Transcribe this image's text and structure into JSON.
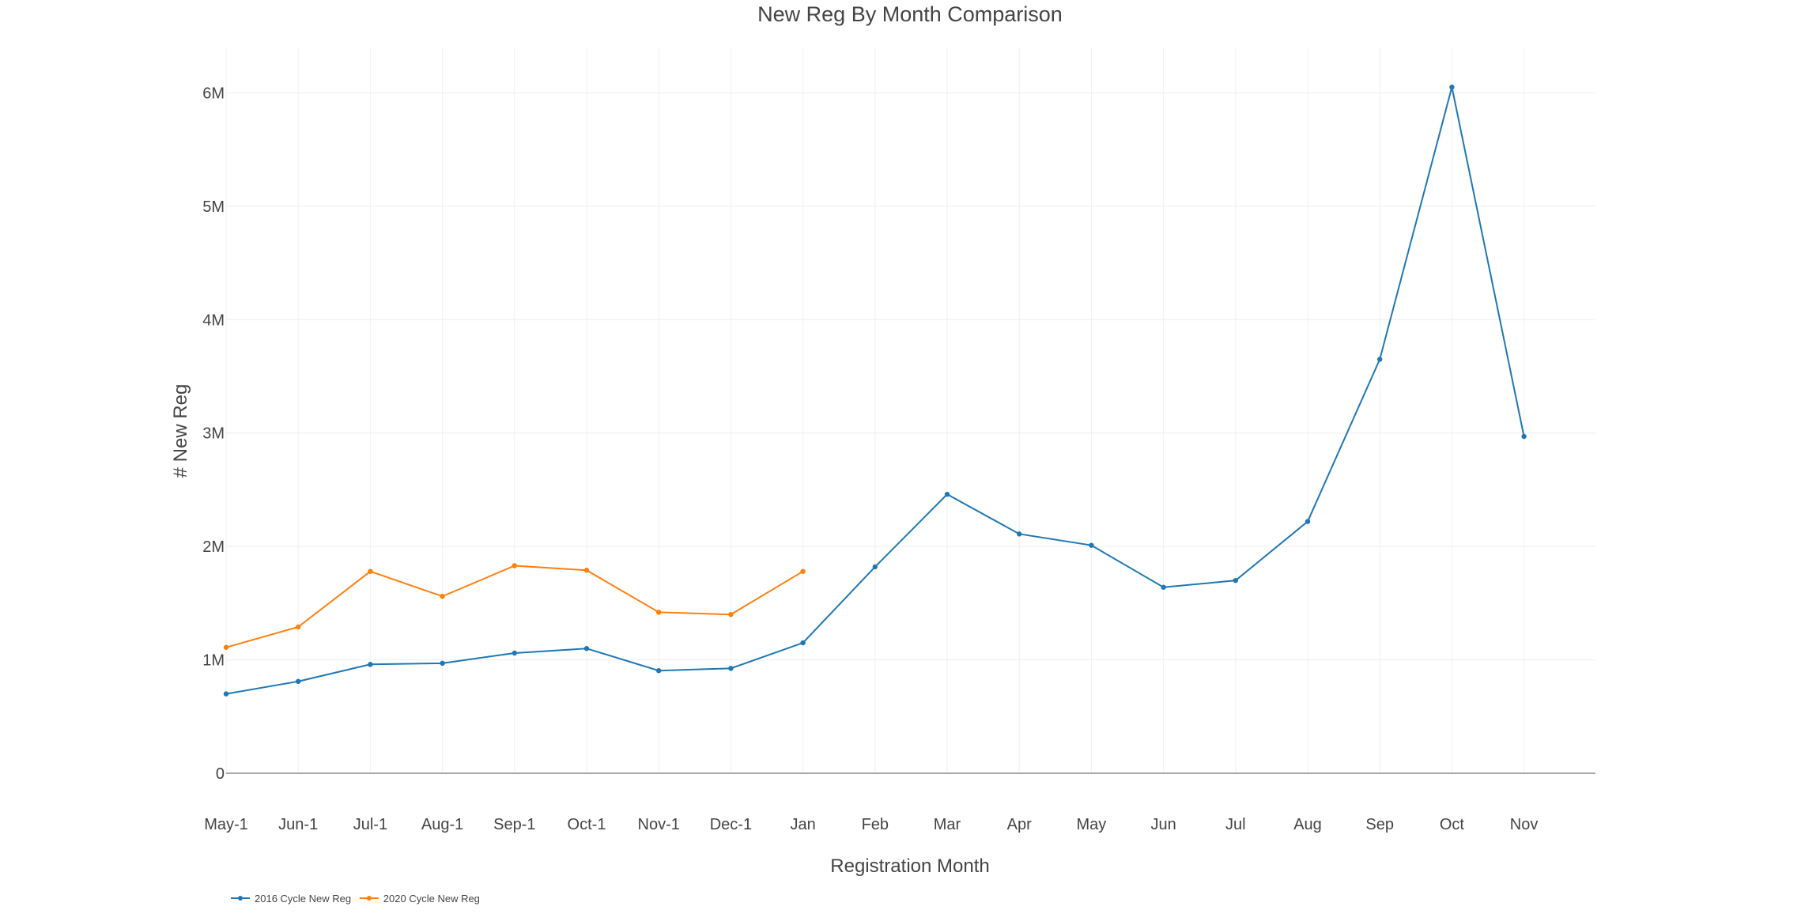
{
  "chart_data": {
    "type": "line",
    "title": "New Reg By Month Comparison",
    "xlabel": "Registration Month",
    "ylabel": "# New Reg",
    "categories": [
      "May-1",
      "Jun-1",
      "Jul-1",
      "Aug-1",
      "Sep-1",
      "Oct-1",
      "Nov-1",
      "Dec-1",
      "Jan",
      "Feb",
      "Mar",
      "Apr",
      "May",
      "Jun",
      "Jul",
      "Aug",
      "Sep",
      "Oct",
      "Nov"
    ],
    "ylim": [
      0,
      6400000
    ],
    "yticks": [
      0,
      1000000,
      2000000,
      3000000,
      4000000,
      5000000,
      6000000
    ],
    "ytick_labels": [
      "0",
      "1M",
      "2M",
      "3M",
      "4M",
      "5M",
      "6M"
    ],
    "grid": true,
    "legend_placement": "bottom-left",
    "series": [
      {
        "name": "2016 Cycle New Reg",
        "color": "#1f77b4",
        "values": [
          700000,
          810000,
          960000,
          970000,
          1060000,
          1100000,
          905000,
          925000,
          1150000,
          1820000,
          2460000,
          2110000,
          2010000,
          1640000,
          1700000,
          2220000,
          3650000,
          6050000,
          2970000
        ]
      },
      {
        "name": "2020 Cycle New Reg",
        "color": "#ff7f0e",
        "values": [
          1110000,
          1290000,
          1780000,
          1560000,
          1830000,
          1790000,
          1420000,
          1400000,
          1780000,
          null,
          null,
          null,
          null,
          null,
          null,
          null,
          null,
          null,
          null
        ]
      }
    ]
  }
}
